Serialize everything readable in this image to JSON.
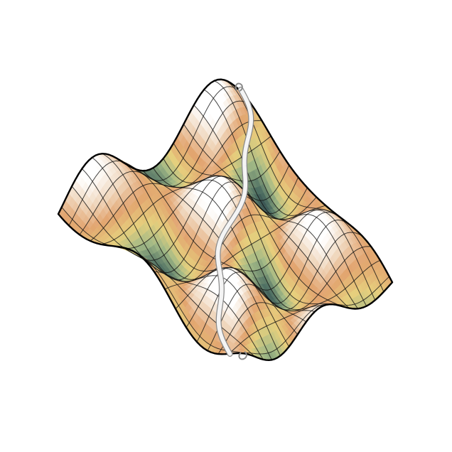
{
  "scene": {
    "background": "#ffffff",
    "surface": {
      "colormap": [
        "#18283a",
        "#4d6e62",
        "#a2b986",
        "#e6cf7d",
        "#e2a46f",
        "#f0d8bf",
        "#ffffff"
      ],
      "mesh_lines": "#111111",
      "outline": "#000000",
      "wave": {
        "x_frequency": 1.55,
        "y_frequency": 1.35
      }
    },
    "tube": {
      "color": "#f4f4f4",
      "edge_color": "#8a8a8a"
    }
  }
}
